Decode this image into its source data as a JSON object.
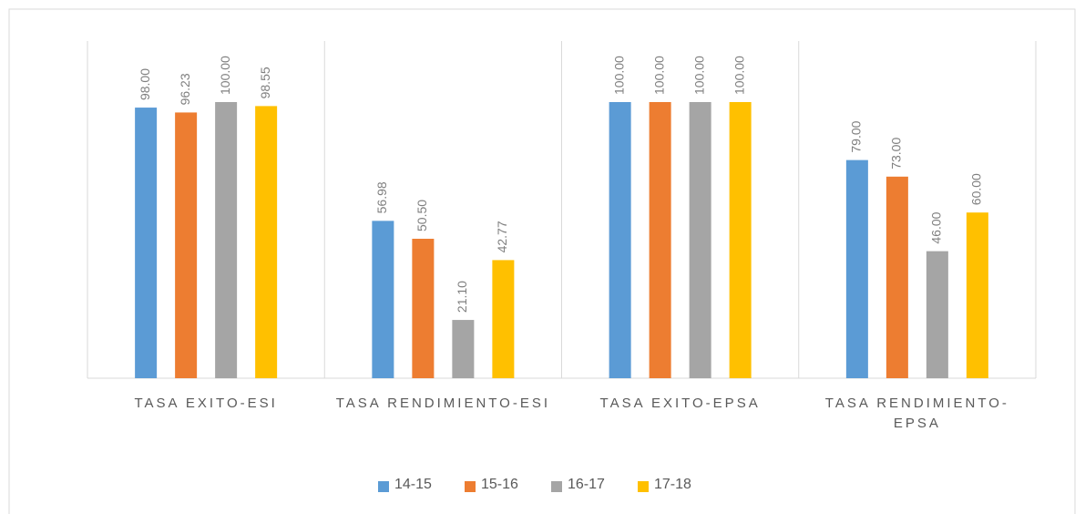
{
  "chart_data": {
    "type": "bar",
    "categories": [
      "TASA EXITO-ESI",
      "TASA RENDIMIENTO-ESI",
      "TASA EXITO-EPSA",
      "TASA RENDIMIENTO-EPSA"
    ],
    "series": [
      {
        "name": "14-15",
        "color": "#5b9bd5",
        "values": [
          98,
          56.98,
          100,
          79
        ],
        "value_labels": [
          "98.00",
          "56.98",
          "100.00",
          "79.00"
        ]
      },
      {
        "name": "15-16",
        "color": "#ed7d31",
        "values": [
          96.23,
          50.5,
          100,
          73
        ],
        "value_labels": [
          "96.23",
          "50.50",
          "100.00",
          "73.00"
        ]
      },
      {
        "name": "16-17",
        "color": "#a5a5a5",
        "values": [
          100,
          21.1,
          100,
          46
        ],
        "value_labels": [
          "100.00",
          "21.10",
          "100.00",
          "46.00"
        ]
      },
      {
        "name": "17-18",
        "color": "#ffc000",
        "values": [
          98.55,
          42.77,
          100,
          60
        ],
        "value_labels": [
          "98.55",
          "42.77",
          "100.00",
          "60.00"
        ]
      }
    ],
    "ylim": [
      0,
      100
    ],
    "legend": "bottom"
  }
}
